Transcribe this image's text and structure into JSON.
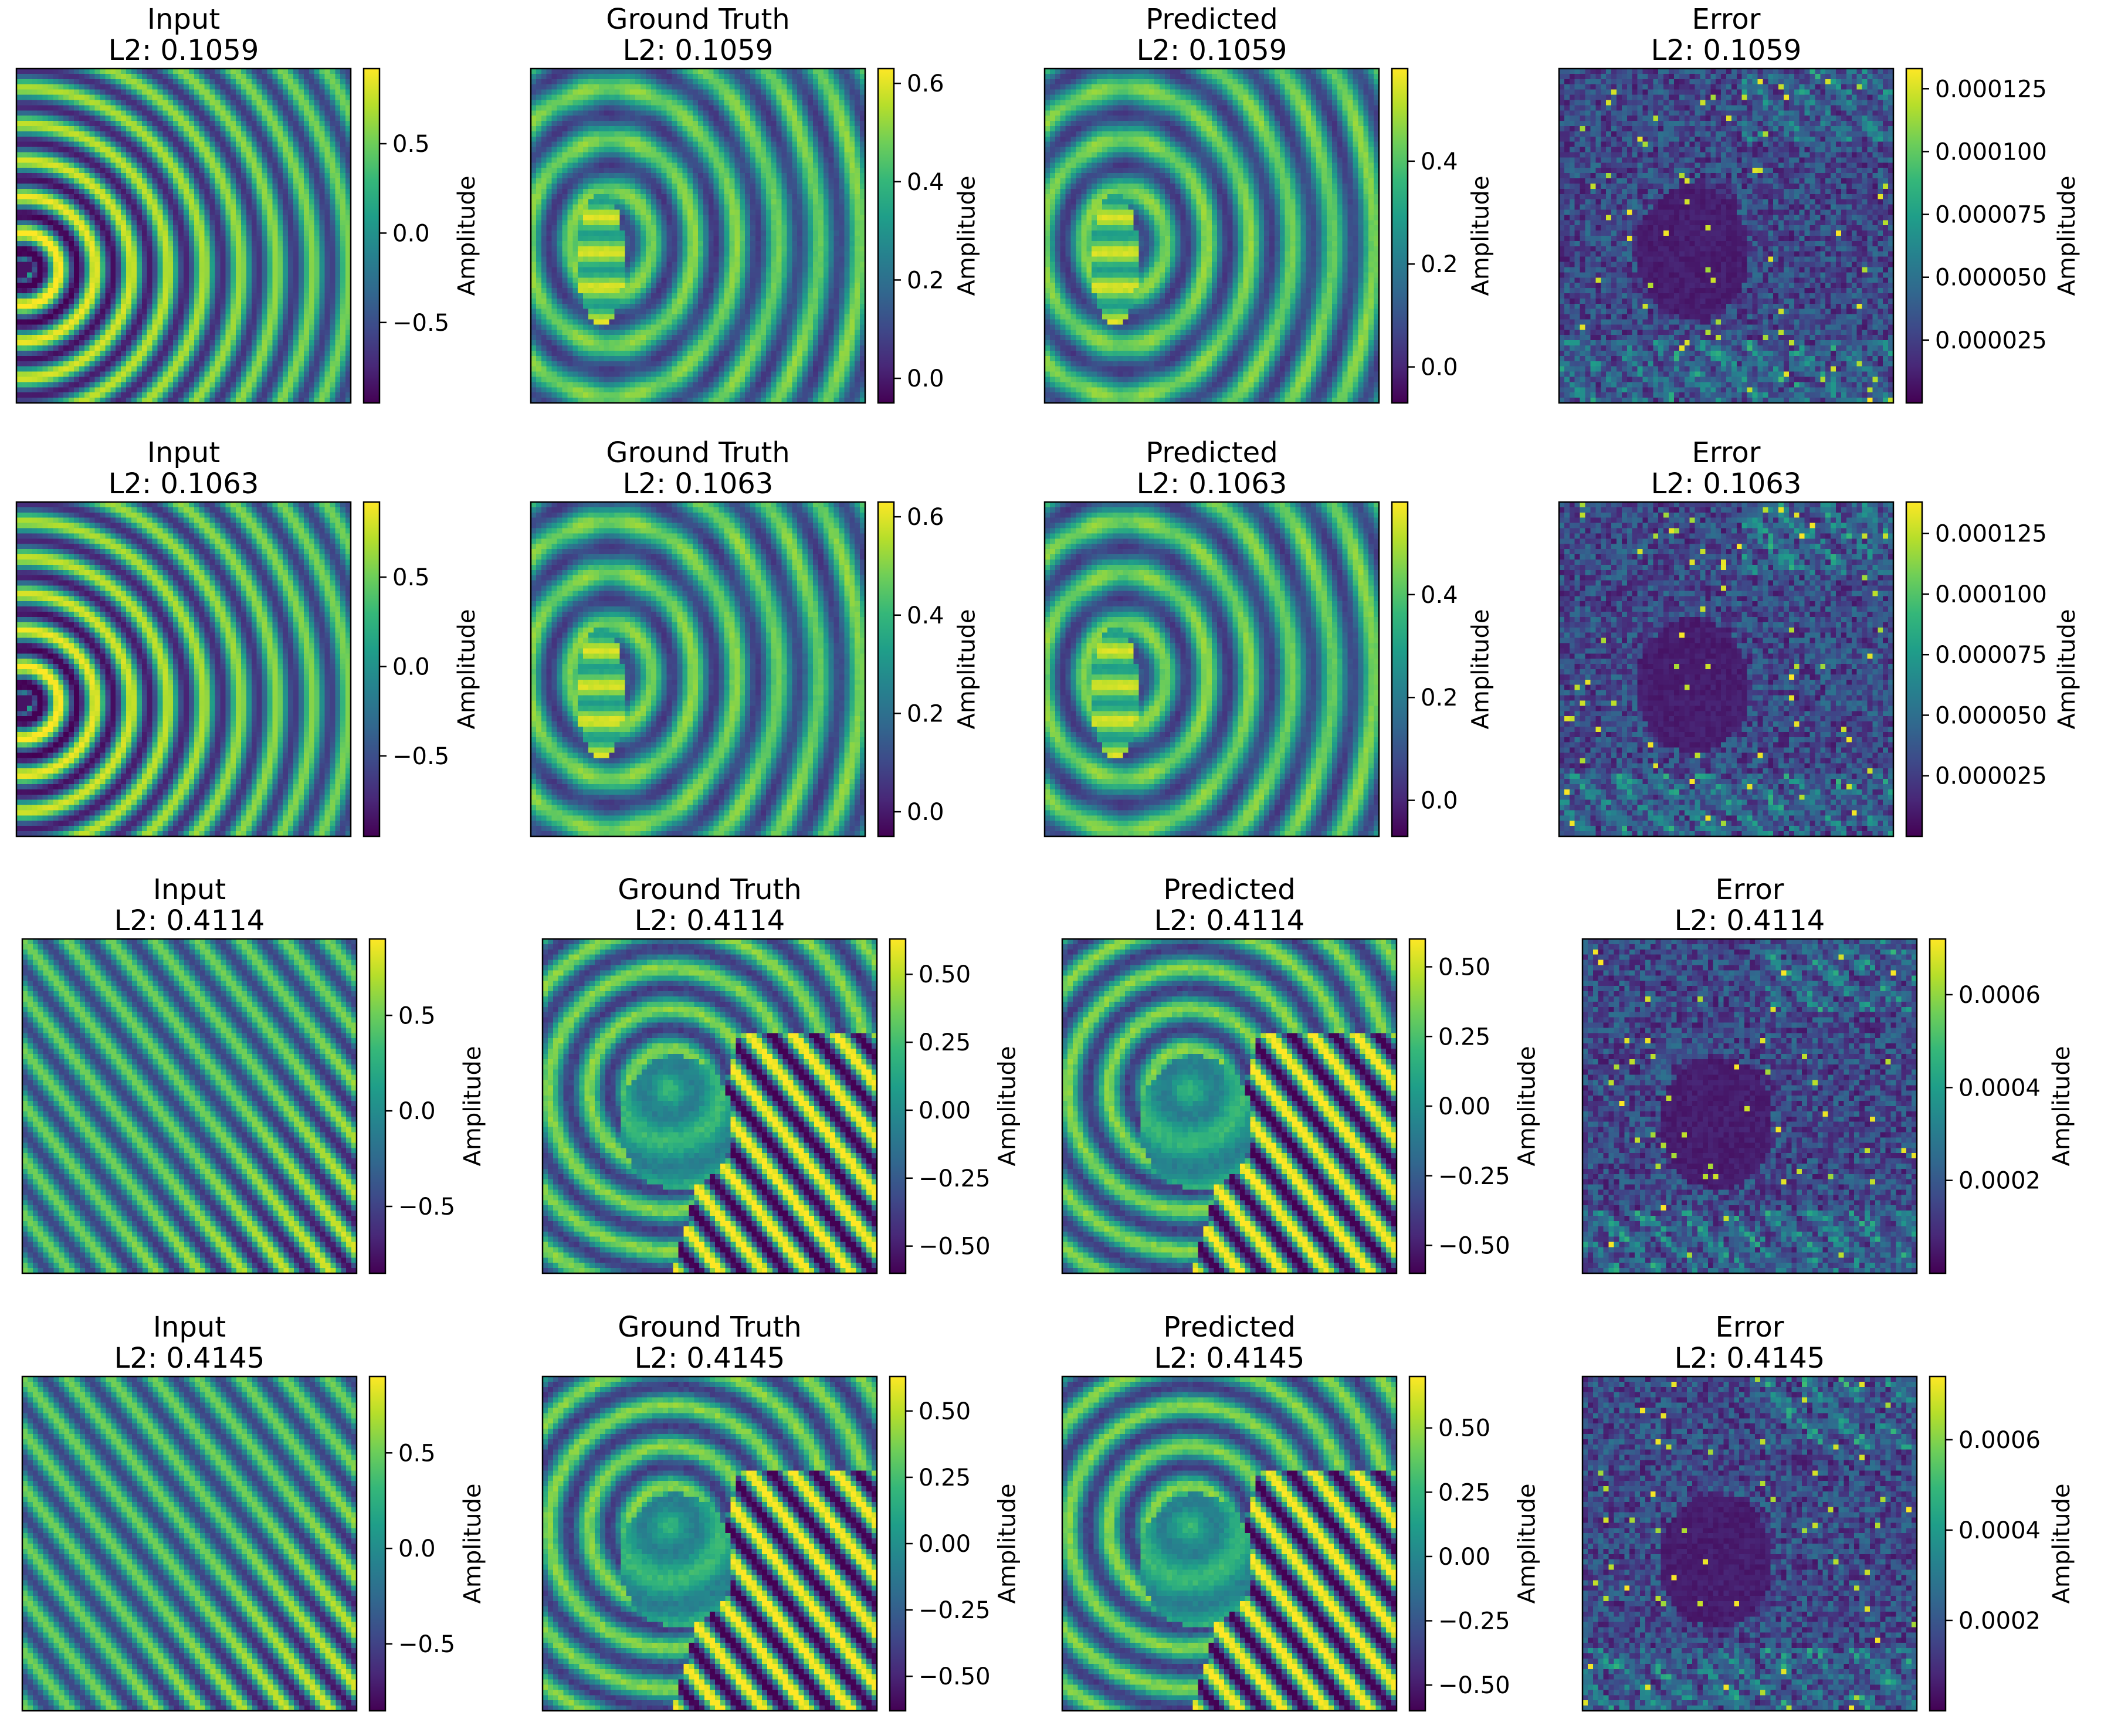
{
  "colorbar_label": "Amplitude",
  "colormap": "viridis",
  "colormap_stops": [
    "#440154",
    "#482878",
    "#3e4989",
    "#31688e",
    "#26828e",
    "#1f9e89",
    "#35b779",
    "#6ece58",
    "#b5de2b",
    "#fde725"
  ],
  "chart_data": [
    {
      "type": "heatmap",
      "title": "Input",
      "subtitle": "L2: 0.1059",
      "pattern": "circular waves from left-edge source",
      "ticks": [
        {
          "v": 0.5,
          "label": "0.5"
        },
        {
          "v": 0.0,
          "label": "0.0"
        },
        {
          "v": -0.5,
          "label": "−0.5"
        }
      ],
      "vmin": -0.95,
      "vmax": 0.92
    },
    {
      "type": "heatmap",
      "title": "Ground Truth",
      "subtitle": "L2: 0.1059",
      "pattern": "waves scattered around elongated obstacle",
      "ticks": [
        {
          "v": 0.6,
          "label": "0.6"
        },
        {
          "v": 0.4,
          "label": "0.4"
        },
        {
          "v": 0.2,
          "label": "0.2"
        },
        {
          "v": 0.0,
          "label": "0.0"
        }
      ],
      "vmin": -0.05,
      "vmax": 0.63
    },
    {
      "type": "heatmap",
      "title": "Predicted",
      "subtitle": "L2: 0.1059",
      "pattern": "waves scattered around elongated obstacle",
      "ticks": [
        {
          "v": 0.4,
          "label": "0.4"
        },
        {
          "v": 0.2,
          "label": "0.2"
        },
        {
          "v": 0.0,
          "label": "0.0"
        }
      ],
      "vmin": -0.07,
      "vmax": 0.58
    },
    {
      "type": "heatmap",
      "title": "Error",
      "subtitle": "L2: 0.1059",
      "pattern": "noisy error field",
      "ticks": [
        {
          "v": 0.000125,
          "label": "0.000125"
        },
        {
          "v": 0.0001,
          "label": "0.000100"
        },
        {
          "v": 7.5e-05,
          "label": "0.000075"
        },
        {
          "v": 5e-05,
          "label": "0.000050"
        },
        {
          "v": 2.5e-05,
          "label": "0.000025"
        }
      ],
      "vmin": 0.0,
      "vmax": 0.000133
    },
    {
      "type": "heatmap",
      "title": "Input",
      "subtitle": "L2: 0.1063",
      "pattern": "circular waves from left-edge source",
      "ticks": [
        {
          "v": 0.5,
          "label": "0.5"
        },
        {
          "v": 0.0,
          "label": "0.0"
        },
        {
          "v": -0.5,
          "label": "−0.5"
        }
      ],
      "vmin": -0.95,
      "vmax": 0.92
    },
    {
      "type": "heatmap",
      "title": "Ground Truth",
      "subtitle": "L2: 0.1063",
      "pattern": "waves scattered around elongated obstacle",
      "ticks": [
        {
          "v": 0.6,
          "label": "0.6"
        },
        {
          "v": 0.4,
          "label": "0.4"
        },
        {
          "v": 0.2,
          "label": "0.2"
        },
        {
          "v": 0.0,
          "label": "0.0"
        }
      ],
      "vmin": -0.05,
      "vmax": 0.63
    },
    {
      "type": "heatmap",
      "title": "Predicted",
      "subtitle": "L2: 0.1063",
      "pattern": "waves scattered around elongated obstacle",
      "ticks": [
        {
          "v": 0.4,
          "label": "0.4"
        },
        {
          "v": 0.2,
          "label": "0.2"
        },
        {
          "v": 0.0,
          "label": "0.0"
        }
      ],
      "vmin": -0.07,
      "vmax": 0.58
    },
    {
      "type": "heatmap",
      "title": "Error",
      "subtitle": "L2: 0.1063",
      "pattern": "noisy error field",
      "ticks": [
        {
          "v": 0.000125,
          "label": "0.000125"
        },
        {
          "v": 0.0001,
          "label": "0.000100"
        },
        {
          "v": 7.5e-05,
          "label": "0.000075"
        },
        {
          "v": 5e-05,
          "label": "0.000050"
        },
        {
          "v": 2.5e-05,
          "label": "0.000025"
        }
      ],
      "vmin": 0.0,
      "vmax": 0.000138
    },
    {
      "type": "heatmap",
      "title": "Input",
      "subtitle": "L2: 0.4114",
      "pattern": "diagonal plane waves",
      "ticks": [
        {
          "v": 0.5,
          "label": "0.5"
        },
        {
          "v": 0.0,
          "label": "0.0"
        },
        {
          "v": -0.5,
          "label": "−0.5"
        }
      ],
      "vmin": -0.85,
      "vmax": 0.9
    },
    {
      "type": "heatmap",
      "title": "Ground Truth",
      "subtitle": "L2: 0.4114",
      "pattern": "plane waves scattered by obstacle",
      "ticks": [
        {
          "v": 0.5,
          "label": "0.50"
        },
        {
          "v": 0.25,
          "label": "0.25"
        },
        {
          "v": 0.0,
          "label": "0.00"
        },
        {
          "v": -0.25,
          "label": "−0.25"
        },
        {
          "v": -0.5,
          "label": "−0.50"
        }
      ],
      "vmin": -0.6,
      "vmax": 0.63
    },
    {
      "type": "heatmap",
      "title": "Predicted",
      "subtitle": "L2: 0.4114",
      "pattern": "plane waves scattered by obstacle",
      "ticks": [
        {
          "v": 0.5,
          "label": "0.50"
        },
        {
          "v": 0.25,
          "label": "0.25"
        },
        {
          "v": 0.0,
          "label": "0.00"
        },
        {
          "v": -0.25,
          "label": "−0.25"
        },
        {
          "v": -0.5,
          "label": "−0.50"
        }
      ],
      "vmin": -0.6,
      "vmax": 0.6
    },
    {
      "type": "heatmap",
      "title": "Error",
      "subtitle": "L2: 0.4114",
      "pattern": "noisy error field",
      "ticks": [
        {
          "v": 0.0006,
          "label": "0.0006"
        },
        {
          "v": 0.0004,
          "label": "0.0004"
        },
        {
          "v": 0.0002,
          "label": "0.0002"
        }
      ],
      "vmin": 0.0,
      "vmax": 0.00072
    },
    {
      "type": "heatmap",
      "title": "Input",
      "subtitle": "L2: 0.4145",
      "pattern": "diagonal plane waves",
      "ticks": [
        {
          "v": 0.5,
          "label": "0.5"
        },
        {
          "v": 0.0,
          "label": "0.0"
        },
        {
          "v": -0.5,
          "label": "−0.5"
        }
      ],
      "vmin": -0.85,
      "vmax": 0.9
    },
    {
      "type": "heatmap",
      "title": "Ground Truth",
      "subtitle": "L2: 0.4145",
      "pattern": "plane waves scattered by obstacle",
      "ticks": [
        {
          "v": 0.5,
          "label": "0.50"
        },
        {
          "v": 0.25,
          "label": "0.25"
        },
        {
          "v": 0.0,
          "label": "0.00"
        },
        {
          "v": -0.25,
          "label": "−0.25"
        },
        {
          "v": -0.5,
          "label": "−0.50"
        }
      ],
      "vmin": -0.63,
      "vmax": 0.63
    },
    {
      "type": "heatmap",
      "title": "Predicted",
      "subtitle": "L2: 0.4145",
      "pattern": "plane waves scattered by obstacle",
      "ticks": [
        {
          "v": 0.5,
          "label": "0.50"
        },
        {
          "v": 0.25,
          "label": "0.25"
        },
        {
          "v": 0.0,
          "label": "0.00"
        },
        {
          "v": -0.25,
          "label": "−0.25"
        },
        {
          "v": -0.5,
          "label": "−0.50"
        }
      ],
      "vmin": -0.6,
      "vmax": 0.7
    },
    {
      "type": "heatmap",
      "title": "Error",
      "subtitle": "L2: 0.4145",
      "pattern": "noisy error field",
      "ticks": [
        {
          "v": 0.0006,
          "label": "0.0006"
        },
        {
          "v": 0.0004,
          "label": "0.0004"
        },
        {
          "v": 0.0002,
          "label": "0.0002"
        }
      ],
      "vmin": 0.0,
      "vmax": 0.00074
    }
  ]
}
